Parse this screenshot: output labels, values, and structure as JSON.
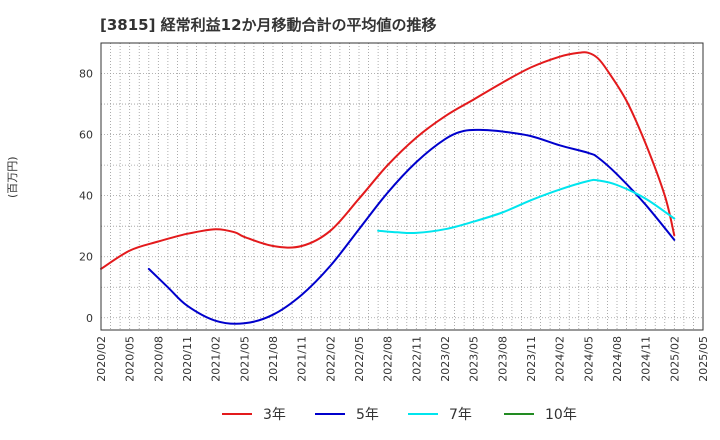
{
  "chart_data": {
    "type": "line",
    "title": "[3815]  経常利益12か月移動合計の平均値の推移",
    "ylabel": "(百万円)",
    "xlabel": "",
    "ylim": [
      -4,
      90
    ],
    "yticks": [
      0,
      20,
      40,
      60,
      80
    ],
    "xticks": [
      "2020/02",
      "2020/05",
      "2020/08",
      "2020/11",
      "2021/02",
      "2021/05",
      "2021/08",
      "2021/11",
      "2022/02",
      "2022/05",
      "2022/08",
      "2022/11",
      "2023/02",
      "2023/05",
      "2023/08",
      "2023/11",
      "2024/02",
      "2024/05",
      "2024/08",
      "2024/11",
      "2025/02",
      "2025/05"
    ],
    "grid": true,
    "legend_position": "bottom",
    "series": [
      {
        "name": "3年",
        "color": "#e31a1c",
        "points": [
          [
            "2020/02",
            16
          ],
          [
            "2020/05",
            22
          ],
          [
            "2020/08",
            25
          ],
          [
            "2020/11",
            27.5
          ],
          [
            "2021/02",
            29
          ],
          [
            "2021/04",
            28
          ],
          [
            "2021/05",
            26.5
          ],
          [
            "2021/08",
            23.5
          ],
          [
            "2021/11",
            23.5
          ],
          [
            "2022/02",
            28.5
          ],
          [
            "2022/05",
            39
          ],
          [
            "2022/08",
            50
          ],
          [
            "2022/11",
            59
          ],
          [
            "2023/02",
            66
          ],
          [
            "2023/05",
            71.5
          ],
          [
            "2023/08",
            77
          ],
          [
            "2023/11",
            82
          ],
          [
            "2024/02",
            85.5
          ],
          [
            "2024/04",
            86.8
          ],
          [
            "2024/05",
            86.8
          ],
          [
            "2024/06",
            85
          ],
          [
            "2024/07",
            81
          ],
          [
            "2024/09",
            71
          ],
          [
            "2024/11",
            57
          ],
          [
            "2025/01",
            40
          ],
          [
            "2025/02",
            27
          ]
        ]
      },
      {
        "name": "5年",
        "color": "#0000cc",
        "points": [
          [
            "2020/07",
            16
          ],
          [
            "2020/09",
            10
          ],
          [
            "2020/11",
            4
          ],
          [
            "2021/02",
            -1
          ],
          [
            "2021/05",
            -1.8
          ],
          [
            "2021/08",
            1
          ],
          [
            "2021/11",
            7.5
          ],
          [
            "2022/02",
            17
          ],
          [
            "2022/05",
            29
          ],
          [
            "2022/08",
            41
          ],
          [
            "2022/11",
            51
          ],
          [
            "2023/02",
            58.5
          ],
          [
            "2023/04",
            61.2
          ],
          [
            "2023/06",
            61.5
          ],
          [
            "2023/08",
            61
          ],
          [
            "2023/11",
            59.5
          ],
          [
            "2024/02",
            56.5
          ],
          [
            "2024/05",
            54
          ],
          [
            "2024/06",
            52.5
          ],
          [
            "2024/08",
            47
          ],
          [
            "2024/11",
            37
          ],
          [
            "2025/02",
            25.5
          ]
        ]
      },
      {
        "name": "7年",
        "color": "#00e5ee",
        "points": [
          [
            "2022/07",
            28.5
          ],
          [
            "2022/09",
            28
          ],
          [
            "2022/11",
            27.8
          ],
          [
            "2023/02",
            29
          ],
          [
            "2023/05",
            31.5
          ],
          [
            "2023/08",
            34.5
          ],
          [
            "2023/11",
            38.5
          ],
          [
            "2024/02",
            42
          ],
          [
            "2024/05",
            44.8
          ],
          [
            "2024/06",
            45
          ],
          [
            "2024/08",
            43.5
          ],
          [
            "2024/11",
            39
          ],
          [
            "2025/02",
            32.5
          ]
        ]
      },
      {
        "name": "10年",
        "color": "#228b22",
        "points": []
      }
    ]
  }
}
